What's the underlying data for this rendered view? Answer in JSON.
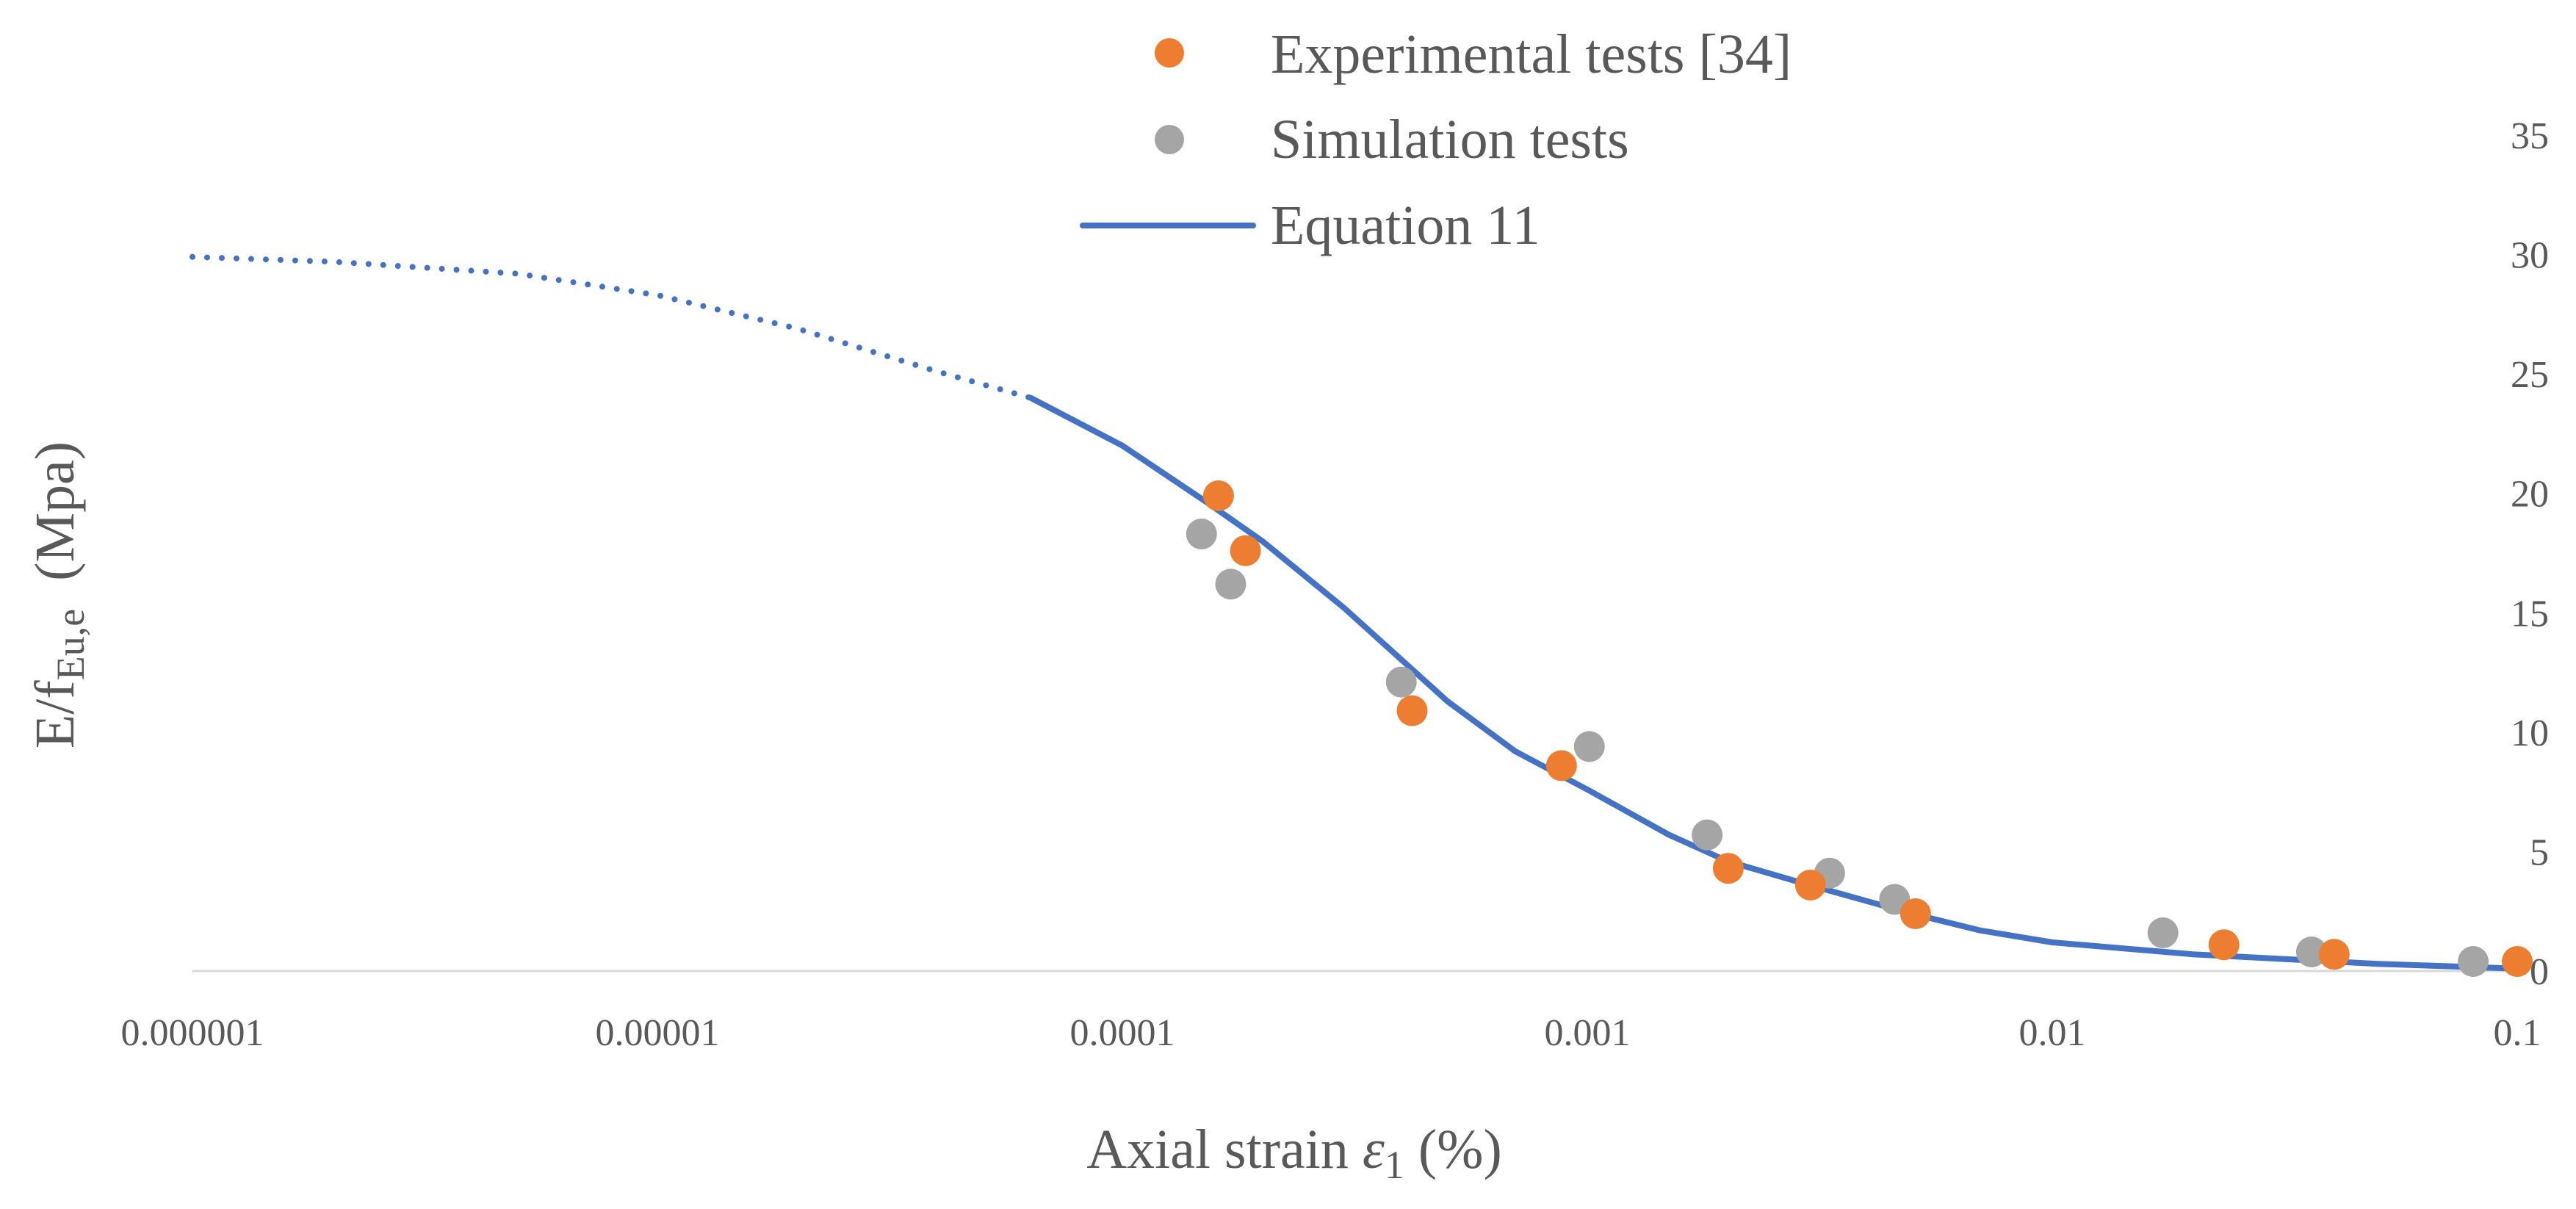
{
  "chart_data": {
    "type": "scatter",
    "title": "",
    "xlabel": {
      "prefix": "Axial strain ",
      "symbol": "ε",
      "sub": "1",
      "suffix": " (%)"
    },
    "ylabel": {
      "prefix": "E/f",
      "sub": "Eu,e",
      "suffix": "  (Mpa)"
    },
    "x_scale": "log",
    "xlim": [
      1e-06,
      0.1
    ],
    "ylim": [
      0,
      35
    ],
    "x_ticks": [
      {
        "value": 1e-06,
        "label": "0.000001"
      },
      {
        "value": 1e-05,
        "label": "0.00001"
      },
      {
        "value": 0.0001,
        "label": "0.0001"
      },
      {
        "value": 0.001,
        "label": "0.001"
      },
      {
        "value": 0.01,
        "label": "0.01"
      },
      {
        "value": 0.1,
        "label": "0.1"
      }
    ],
    "y_ticks": [
      {
        "value": 0,
        "label": "0"
      },
      {
        "value": 5,
        "label": "5"
      },
      {
        "value": 10,
        "label": "10"
      },
      {
        "value": 15,
        "label": "15"
      },
      {
        "value": 20,
        "label": "20"
      },
      {
        "value": 25,
        "label": "25"
      },
      {
        "value": 30,
        "label": "30"
      },
      {
        "value": 35,
        "label": "35"
      }
    ],
    "y_axis_position": "right",
    "grid": false,
    "legend_position": "top-center",
    "series": [
      {
        "name": "Experimental tests [34]",
        "kind": "scatter",
        "color": "#ED7D31",
        "points": [
          {
            "x": 0.000161,
            "y": 19.9
          },
          {
            "x": 0.000184,
            "y": 17.6
          },
          {
            "x": 0.00042,
            "y": 10.9
          },
          {
            "x": 0.00088,
            "y": 8.6
          },
          {
            "x": 0.00201,
            "y": 4.3
          },
          {
            "x": 0.00302,
            "y": 3.6
          },
          {
            "x": 0.00508,
            "y": 2.4
          },
          {
            "x": 0.0234,
            "y": 1.1
          },
          {
            "x": 0.0404,
            "y": 0.7
          },
          {
            "x": 0.1,
            "y": 0.4
          }
        ]
      },
      {
        "name": "Simulation tests",
        "kind": "scatter",
        "color": "#A5A5A5",
        "points": [
          {
            "x": 0.000148,
            "y": 18.3
          },
          {
            "x": 0.000171,
            "y": 16.2
          },
          {
            "x": 0.000398,
            "y": 12.1
          },
          {
            "x": 0.00101,
            "y": 9.4
          },
          {
            "x": 0.00181,
            "y": 5.7
          },
          {
            "x": 0.00332,
            "y": 4.1
          },
          {
            "x": 0.00458,
            "y": 3.0
          },
          {
            "x": 0.0173,
            "y": 1.6
          },
          {
            "x": 0.0361,
            "y": 0.8
          },
          {
            "x": 0.0804,
            "y": 0.4
          }
        ]
      },
      {
        "name": "Equation 11",
        "kind": "line",
        "color": "#4472C4",
        "extrapolated_style": "dotted",
        "dotted_until_x": 6.35e-05,
        "points": [
          {
            "x": 1e-06,
            "y": 29.9
          },
          {
            "x": 2e-06,
            "y": 29.7
          },
          {
            "x": 5e-06,
            "y": 29.2
          },
          {
            "x": 1e-05,
            "y": 28.3
          },
          {
            "x": 2e-05,
            "y": 26.9
          },
          {
            "x": 4e-05,
            "y": 25.1
          },
          {
            "x": 6.35e-05,
            "y": 24.0
          },
          {
            "x": 0.0001,
            "y": 22.0
          },
          {
            "x": 0.00015,
            "y": 19.7
          },
          {
            "x": 0.0002,
            "y": 18.0
          },
          {
            "x": 0.0003,
            "y": 15.2
          },
          {
            "x": 0.0005,
            "y": 11.3
          },
          {
            "x": 0.0007,
            "y": 9.2
          },
          {
            "x": 0.001,
            "y": 7.6
          },
          {
            "x": 0.0015,
            "y": 5.7
          },
          {
            "x": 0.002,
            "y": 4.6
          },
          {
            "x": 0.003,
            "y": 3.6
          },
          {
            "x": 0.005,
            "y": 2.4
          },
          {
            "x": 0.007,
            "y": 1.7
          },
          {
            "x": 0.01,
            "y": 1.2
          },
          {
            "x": 0.02,
            "y": 0.7
          },
          {
            "x": 0.05,
            "y": 0.3
          },
          {
            "x": 0.1,
            "y": 0.1
          }
        ]
      }
    ]
  }
}
